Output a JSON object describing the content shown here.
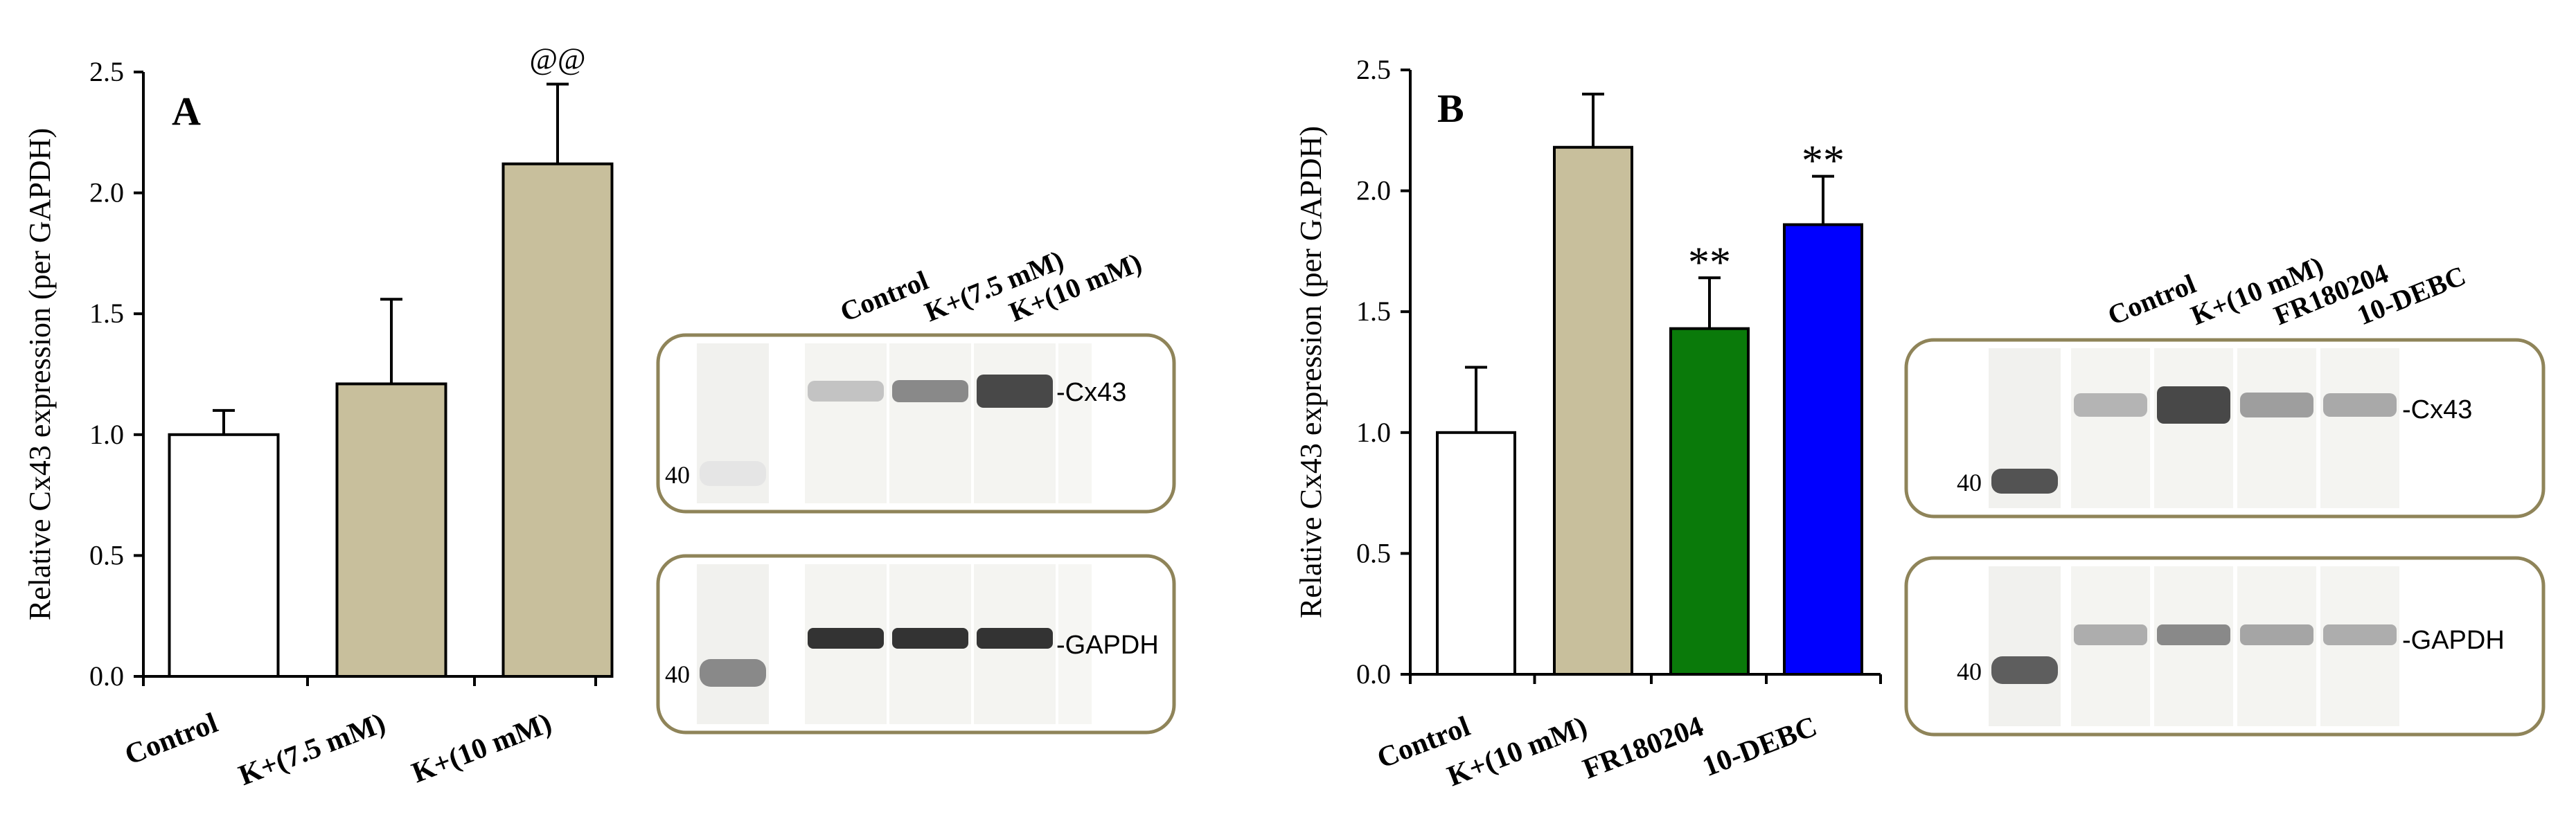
{
  "panels": [
    {
      "letter": "A",
      "chart_data": {
        "type": "bar",
        "title": "",
        "ylabel": "Relative Cx43 expression (per GAPDH)",
        "xlabel": "",
        "ylim": [
          0,
          2.5
        ],
        "yticks": [
          "0.0",
          "0.5",
          "1.0",
          "1.5",
          "2.0",
          "2.5"
        ],
        "grid": false,
        "categories": [
          "Control",
          "K+(7.5 mM)",
          "K+(10 mM)"
        ],
        "values": [
          1.0,
          1.21,
          2.12
        ],
        "errors": [
          0.1,
          0.35,
          0.33
        ],
        "colors": [
          "#ffffff",
          "#c8bf9c",
          "#c8bf9c"
        ],
        "annotations": [
          "",
          "",
          "@@"
        ]
      },
      "blot": {
        "lane_labels": [
          "Control",
          "K+(7.5 mM)",
          "K+(10 mM)"
        ],
        "marker": "40",
        "top_label": "Cx43",
        "bottom_label": "GAPDH"
      }
    },
    {
      "letter": "B",
      "chart_data": {
        "type": "bar",
        "title": "",
        "ylabel": "Relative Cx43 expression (per GAPDH)",
        "xlabel": "",
        "ylim": [
          0,
          2.5
        ],
        "yticks": [
          "0.0",
          "0.5",
          "1.0",
          "1.5",
          "2.0",
          "2.5"
        ],
        "grid": false,
        "categories": [
          "Control",
          "K+(10 mM)",
          "FR180204",
          "10-DEBC"
        ],
        "values": [
          1.0,
          2.18,
          1.43,
          1.86
        ],
        "errors": [
          0.27,
          0.22,
          0.21,
          0.2
        ],
        "colors": [
          "#ffffff",
          "#c8bf9c",
          "#0a7a0a",
          "#0000ff"
        ],
        "annotations": [
          "",
          "",
          "**",
          "**"
        ]
      },
      "blot": {
        "lane_labels": [
          "Control",
          "K+(10 mM)",
          "FR180204",
          "10-DEBC"
        ],
        "marker": "40",
        "top_label": "Cx43",
        "bottom_label": "GAPDH"
      }
    }
  ]
}
